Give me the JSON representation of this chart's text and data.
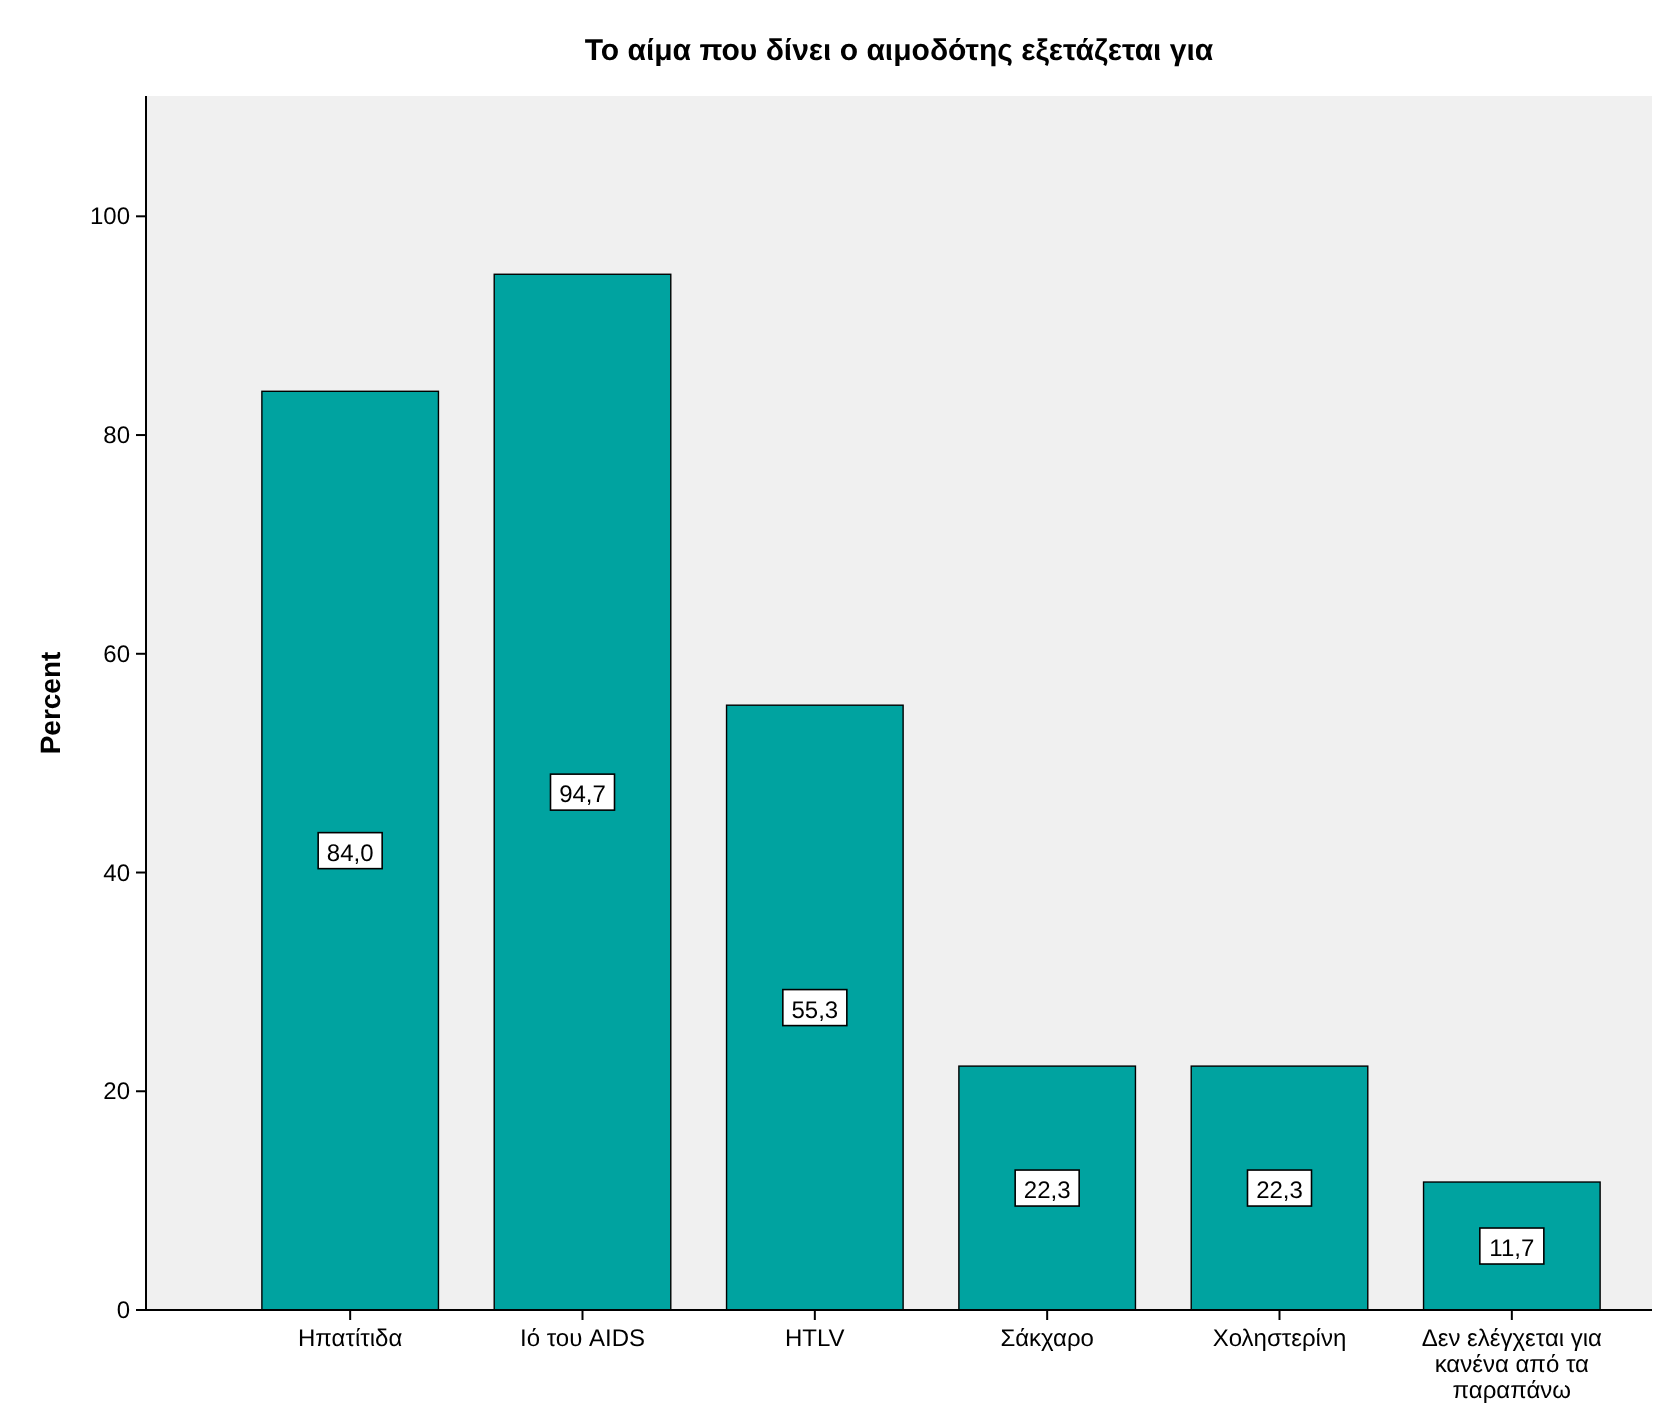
{
  "chart_data": {
    "type": "bar",
    "title": "Το αίμα που δίνει ο αιμοδότης εξετάζεται για",
    "ylabel": "Percent",
    "categories": [
      "Ηπατίτιδα",
      "Ιό του AIDS",
      "HTLV",
      "Σάκχαρο",
      "Χοληστερίνη",
      "Δεν ελέγχεται για κανένα από τα παραπάνω"
    ],
    "values": [
      84.0,
      94.7,
      55.3,
      22.3,
      22.3,
      11.7
    ],
    "value_labels": [
      "84,0",
      "94,7",
      "55,3",
      "22,3",
      "22,3",
      "11,7"
    ],
    "color": "#00a3a0",
    "ylim": [
      0,
      111
    ],
    "yticks": [
      0,
      20,
      40,
      60,
      80,
      100
    ],
    "grid": false
  }
}
